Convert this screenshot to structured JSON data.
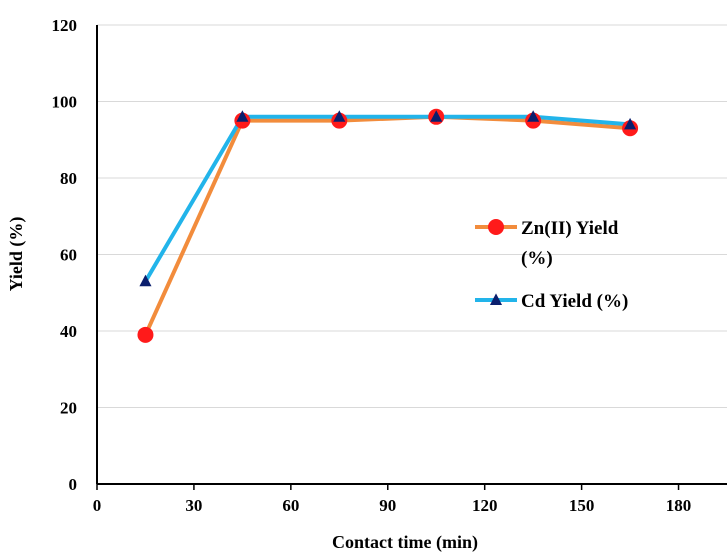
{
  "chart_data": {
    "type": "line",
    "xlabel": "Contact time (min)",
    "ylabel": "Yield (%)",
    "xlim": [
      0,
      195
    ],
    "ylim": [
      0,
      120
    ],
    "x_ticks": [
      "0",
      "30",
      "60",
      "90",
      "120",
      "150",
      "180"
    ],
    "y_ticks": [
      "0",
      "20",
      "40",
      "60",
      "80",
      "100",
      "120"
    ],
    "grid": "horizontal",
    "legend_position": "right-middle",
    "x": [
      15,
      45,
      75,
      105,
      135,
      165
    ],
    "series": [
      {
        "name": "Zn(II) Yield (%)",
        "legend_lines": [
          "Zn(II) Yield",
          "(%)"
        ],
        "values": [
          39,
          95,
          95,
          96,
          95,
          93
        ],
        "line_color": "#f28c3c",
        "marker": "circle",
        "marker_color": "#ff1a1a"
      },
      {
        "name": "Cd Yield (%)",
        "legend_lines": [
          "Cd Yield (%)"
        ],
        "values": [
          53,
          96,
          96,
          96,
          96,
          94
        ],
        "line_color": "#22b4ea",
        "marker": "triangle",
        "marker_color": "#0b1f6e"
      }
    ]
  }
}
